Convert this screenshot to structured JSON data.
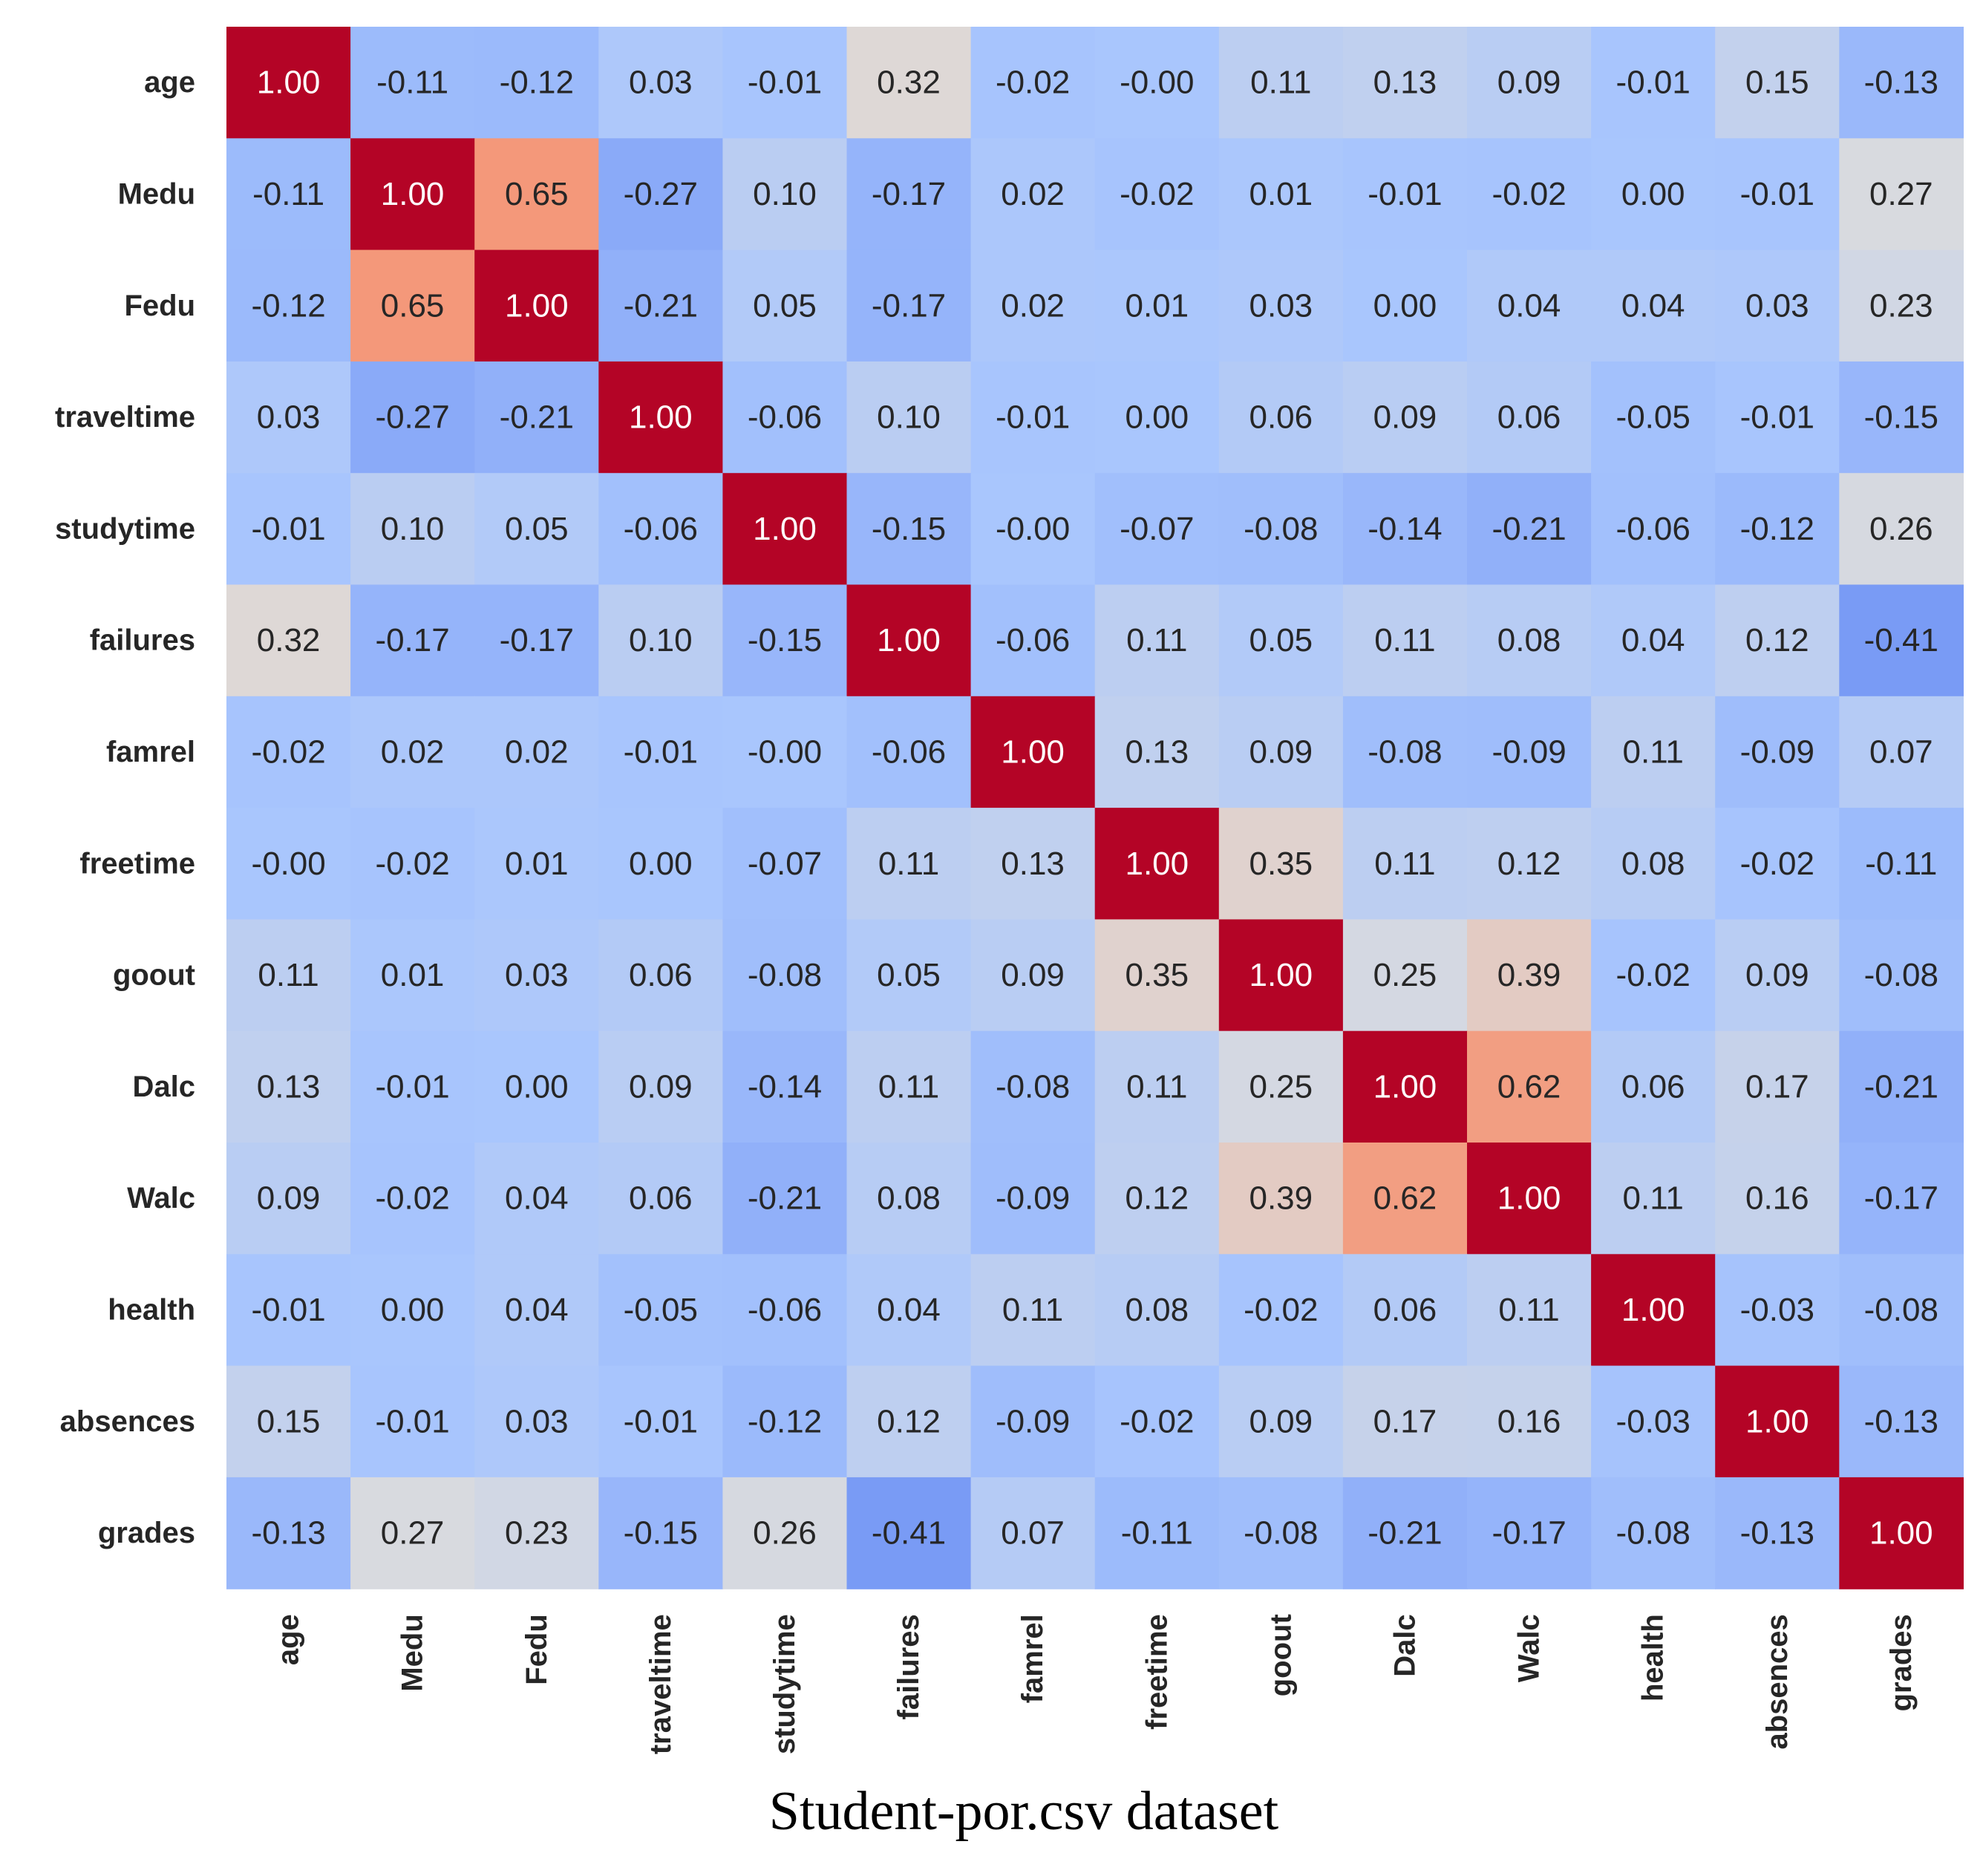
{
  "chart_data": {
    "type": "heatmap",
    "title": "Student-por.csv dataset",
    "colormap": "coolwarm",
    "vmin": -1,
    "vmax": 1,
    "low_color": "#3b4cc0",
    "mid_color": "#dddcdc",
    "high_color": "#b40426",
    "row_labels": [
      "age",
      "Medu",
      "Fedu",
      "traveltime",
      "studytime",
      "failures",
      "famrel",
      "freetime",
      "goout",
      "Dalc",
      "Walc",
      "health",
      "absences",
      "grades"
    ],
    "col_labels": [
      "age",
      "Medu",
      "Fedu",
      "traveltime",
      "studytime",
      "failures",
      "famrel",
      "freetime",
      "goout",
      "Dalc",
      "Walc",
      "health",
      "absences",
      "grades"
    ],
    "values": [
      [
        1.0,
        -0.11,
        -0.12,
        0.03,
        -0.01,
        0.32,
        -0.02,
        -0.0,
        0.11,
        0.13,
        0.09,
        -0.01,
        0.15,
        -0.13
      ],
      [
        -0.11,
        1.0,
        0.65,
        -0.27,
        0.1,
        -0.17,
        0.02,
        -0.02,
        0.01,
        -0.01,
        -0.02,
        0.0,
        -0.01,
        0.27
      ],
      [
        -0.12,
        0.65,
        1.0,
        -0.21,
        0.05,
        -0.17,
        0.02,
        0.01,
        0.03,
        0.0,
        0.04,
        0.04,
        0.03,
        0.23
      ],
      [
        0.03,
        -0.27,
        -0.21,
        1.0,
        -0.06,
        0.1,
        -0.01,
        0.0,
        0.06,
        0.09,
        0.06,
        -0.05,
        -0.01,
        -0.15
      ],
      [
        -0.01,
        0.1,
        0.05,
        -0.06,
        1.0,
        -0.15,
        -0.0,
        -0.07,
        -0.08,
        -0.14,
        -0.21,
        -0.06,
        -0.12,
        0.26
      ],
      [
        0.32,
        -0.17,
        -0.17,
        0.1,
        -0.15,
        1.0,
        -0.06,
        0.11,
        0.05,
        0.11,
        0.08,
        0.04,
        0.12,
        -0.41
      ],
      [
        -0.02,
        0.02,
        0.02,
        -0.01,
        -0.0,
        -0.06,
        1.0,
        0.13,
        0.09,
        -0.08,
        -0.09,
        0.11,
        -0.09,
        0.07
      ],
      [
        -0.0,
        -0.02,
        0.01,
        0.0,
        -0.07,
        0.11,
        0.13,
        1.0,
        0.35,
        0.11,
        0.12,
        0.08,
        -0.02,
        -0.11
      ],
      [
        0.11,
        0.01,
        0.03,
        0.06,
        -0.08,
        0.05,
        0.09,
        0.35,
        1.0,
        0.25,
        0.39,
        -0.02,
        0.09,
        -0.08
      ],
      [
        0.13,
        -0.01,
        0.0,
        0.09,
        -0.14,
        0.11,
        -0.08,
        0.11,
        0.25,
        1.0,
        0.62,
        0.06,
        0.17,
        -0.21
      ],
      [
        0.09,
        -0.02,
        0.04,
        0.06,
        -0.21,
        0.08,
        -0.09,
        0.12,
        0.39,
        0.62,
        1.0,
        0.11,
        0.16,
        -0.17
      ],
      [
        -0.01,
        0.0,
        0.04,
        -0.05,
        -0.06,
        0.04,
        0.11,
        0.08,
        -0.02,
        0.06,
        0.11,
        1.0,
        -0.03,
        -0.08
      ],
      [
        0.15,
        -0.01,
        0.03,
        -0.01,
        -0.12,
        0.12,
        -0.09,
        -0.02,
        0.09,
        0.17,
        0.16,
        -0.03,
        1.0,
        -0.13
      ],
      [
        -0.13,
        0.27,
        0.23,
        -0.15,
        0.26,
        -0.41,
        0.07,
        -0.11,
        -0.08,
        -0.21,
        -0.17,
        -0.08,
        -0.13,
        1.0
      ]
    ],
    "annotation_format": "0.00",
    "legend": "none"
  }
}
